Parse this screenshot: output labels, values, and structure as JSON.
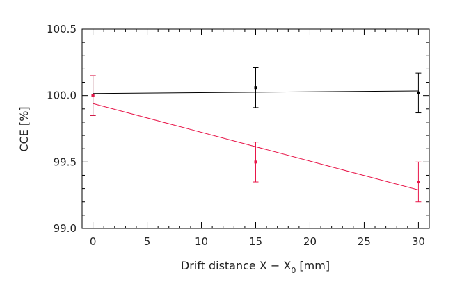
{
  "chart_data": {
    "type": "scatter",
    "title": "",
    "xlabel": "Drift distance X − X",
    "xlabel_sub": "0",
    "xlabel_unit": " [mm]",
    "ylabel": "CCE [%]",
    "xlim": [
      -1,
      31
    ],
    "ylim": [
      99.0,
      100.5
    ],
    "x_ticks": [
      0,
      5,
      10,
      15,
      20,
      25,
      30
    ],
    "x_tick_labels": [
      "0",
      "5",
      "10",
      "15",
      "20",
      "25",
      "30"
    ],
    "y_ticks": [
      99.0,
      99.5,
      100.0,
      100.5
    ],
    "y_tick_labels": [
      "99.0",
      "99.5",
      "100.0",
      "100.5"
    ],
    "grid": false,
    "series": [
      {
        "color": "#000000",
        "points": [
          {
            "x": 0,
            "y": 100.0,
            "err": 0.15
          },
          {
            "x": 15,
            "y": 100.06,
            "err": 0.15
          },
          {
            "x": 30,
            "y": 100.02,
            "err": 0.15
          }
        ],
        "fit": {
          "x": [
            0,
            30
          ],
          "y": [
            100.015,
            100.035
          ]
        }
      },
      {
        "color": "#e8174a",
        "points": [
          {
            "x": 0,
            "y": 100.0,
            "err": 0.15
          },
          {
            "x": 15,
            "y": 99.5,
            "err": 0.15
          },
          {
            "x": 30,
            "y": 99.35,
            "err": 0.15
          }
        ],
        "fit": {
          "x": [
            0,
            30
          ],
          "y": [
            99.94,
            99.29
          ]
        }
      }
    ]
  }
}
